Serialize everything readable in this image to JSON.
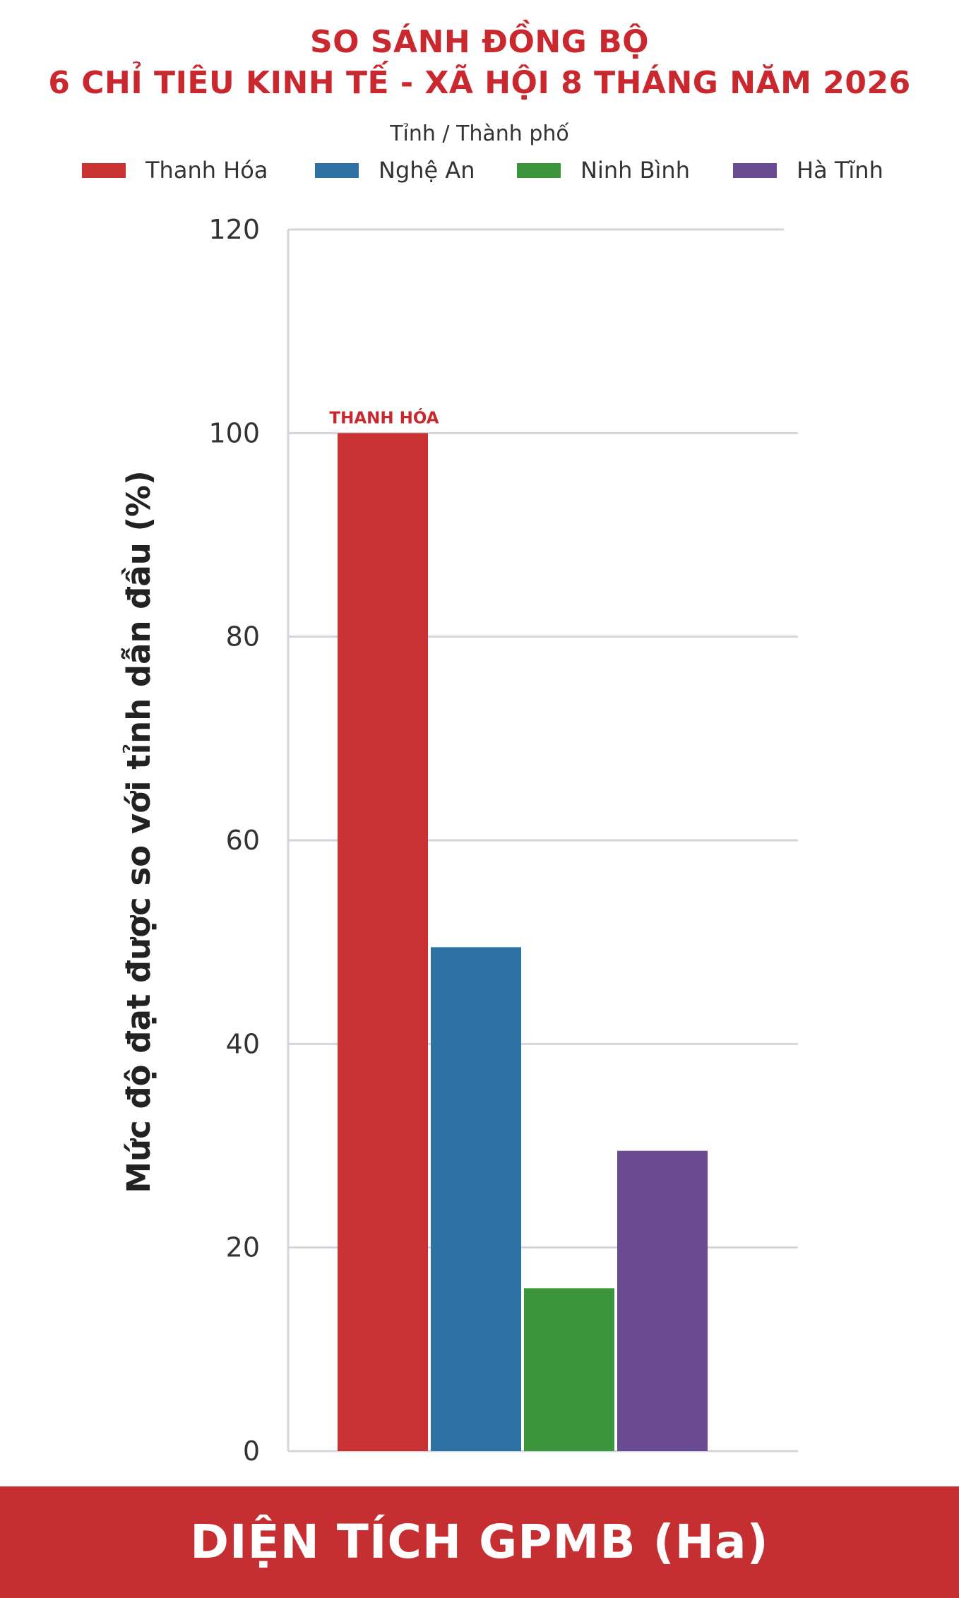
{
  "header": {
    "title_line_1": "SO SÁNH ĐỒNG BỘ",
    "title_line_2": "6 CHỈ TIÊU KINH TẾ - XÃ HỘI 8 THÁNG NĂM 2026"
  },
  "footer": {
    "label": "DIỆN TÍCH GPMB (Ha)"
  },
  "colors": {
    "accent": "#c8282e",
    "footer_bg": "#c62f32"
  },
  "chart_data": {
    "type": "bar",
    "title": "",
    "legend_title": "Tỉnh / Thành phố",
    "legend_position": "top",
    "xlabel": "",
    "ylabel": "Mức độ đạt được so với tỉnh dẫn đầu (%)",
    "ylim": [
      0,
      120
    ],
    "yticks": [
      0,
      20,
      40,
      60,
      80,
      100,
      120
    ],
    "grid": true,
    "categories": [
      "Thanh Hóa",
      "Nghệ An",
      "Ninh Bình",
      "Hà Tĩnh"
    ],
    "series": [
      {
        "name": "Thanh Hóa",
        "value": 100,
        "color": "#c83232"
      },
      {
        "name": "Nghệ An",
        "value": 49.5,
        "color": "#2e72a4"
      },
      {
        "name": "Ninh Bình",
        "value": 16,
        "color": "#3b963b"
      },
      {
        "name": "Hà Tĩnh",
        "value": 29.5,
        "color": "#6a4a90"
      }
    ],
    "annotations": [
      {
        "text": "THANH HÓA",
        "series": "Thanh Hóa"
      }
    ]
  }
}
